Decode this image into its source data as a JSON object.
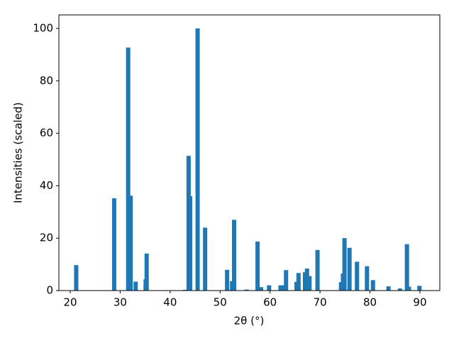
{
  "chart_data": {
    "type": "bar",
    "xlabel": "2θ (°)",
    "ylabel": "Intensities (scaled)",
    "x": [
      21.2,
      28.8,
      31.6,
      32.1,
      33.1,
      35.1,
      35.3,
      43.0,
      43.7,
      44.0,
      45.5,
      47.0,
      51.4,
      52.4,
      52.8,
      55.3,
      57.5,
      58.2,
      59.8,
      62.1,
      62.6,
      63.2,
      65.3,
      65.7,
      67.0,
      67.4,
      67.9,
      69.5,
      74.2,
      74.6,
      74.9,
      75.9,
      77.4,
      79.4,
      80.6,
      83.7,
      86.0,
      87.4,
      87.8,
      89.9
    ],
    "values": [
      9.7,
      35.2,
      92.7,
      36.2,
      3.4,
      4.3,
      14.1,
      0.3,
      51.4,
      36.0,
      100,
      24.0,
      7.9,
      3.6,
      27.0,
      0.4,
      18.7,
      1.3,
      2.0,
      2.0,
      2.0,
      7.8,
      3.3,
      6.7,
      7.0,
      8.4,
      5.5,
      15.5,
      3.2,
      6.5,
      20.0,
      16.3,
      11.0,
      9.3,
      4.0,
      1.6,
      0.8,
      17.7,
      1.5,
      1.8
    ],
    "color": "#1f77b4",
    "xlim": [
      17.73,
      93.98
    ],
    "xticks": [
      20,
      30,
      40,
      50,
      60,
      70,
      80,
      90
    ],
    "ylim": [
      0,
      105.15
    ],
    "yticks": [
      0,
      20,
      40,
      60,
      80,
      100
    ],
    "grid": false
  }
}
